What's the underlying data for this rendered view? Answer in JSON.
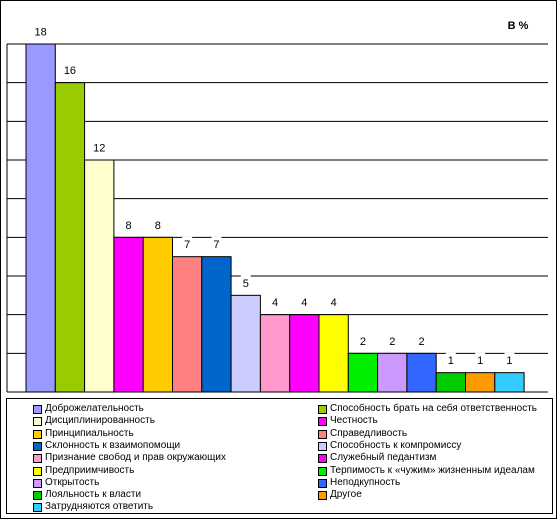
{
  "chart_data": {
    "type": "bar",
    "unit_label": "В %",
    "ylim": [
      0,
      18
    ],
    "grid": true,
    "legend_position": "bottom",
    "series": [
      {
        "name": "Доброжелательность",
        "value": 18,
        "color": "#9999ff"
      },
      {
        "name": "Способность брать на себя ответственность",
        "value": 16,
        "color": "#99cc00"
      },
      {
        "name": "Дисциплинированность",
        "value": 12,
        "color": "#ffffcc"
      },
      {
        "name": "Честность",
        "value": 8,
        "color": "#ff00ff"
      },
      {
        "name": "Принципиальность",
        "value": 8,
        "color": "#ffcc00"
      },
      {
        "name": "Справедливость",
        "value": 7,
        "color": "#ff8080"
      },
      {
        "name": "Склонность к взаимопомощи",
        "value": 7,
        "color": "#0066cc"
      },
      {
        "name": "Способность к компромиссу",
        "value": 5,
        "color": "#ccccff"
      },
      {
        "name": "Признание свобод и прав окружающих",
        "value": 4,
        "color": "#ff99cc"
      },
      {
        "name": "Служебный педантизм",
        "value": 4,
        "color": "#ff00ff"
      },
      {
        "name": "Предприимчивость",
        "value": 4,
        "color": "#ffff00"
      },
      {
        "name": "Терпимость к «чужим» жизненным идеалам",
        "value": 2,
        "color": "#00ee00"
      },
      {
        "name": "Открытость",
        "value": 2,
        "color": "#cc99ff"
      },
      {
        "name": "Неподкупность",
        "value": 2,
        "color": "#3366ff"
      },
      {
        "name": "Лояльность к власти",
        "value": 1,
        "color": "#00cc00"
      },
      {
        "name": "Другое",
        "value": 1,
        "color": "#ff9900"
      },
      {
        "name": "Затрудняются ответить",
        "value": 1,
        "color": "#33ccff"
      }
    ]
  }
}
